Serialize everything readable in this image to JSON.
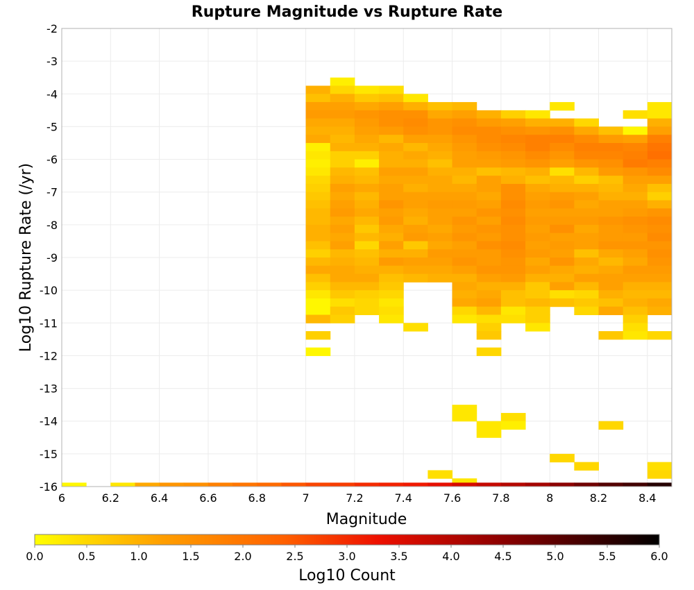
{
  "chart_data": {
    "type": "heatmap",
    "title": "Rupture Magnitude vs Rupture Rate",
    "xlabel": "Magnitude",
    "ylabel": "Log10 Rupture Rate (/yr)",
    "colorbar_label": "Log10 Count",
    "xlim": [
      6,
      8.5
    ],
    "ylim": [
      -16,
      -2
    ],
    "x_ticks": [
      "6",
      "6.2",
      "6.4",
      "6.6",
      "6.8",
      "7",
      "7.2",
      "7.4",
      "7.6",
      "7.8",
      "8",
      "8.2",
      "8.4"
    ],
    "y_ticks": [
      "-2",
      "-3",
      "-4",
      "-5",
      "-6",
      "-7",
      "-8",
      "-9",
      "-10",
      "-11",
      "-12",
      "-13",
      "-14",
      "-15",
      "-16"
    ],
    "colorbar_ticks": [
      "0.0",
      "0.5",
      "1.0",
      "1.5",
      "2.0",
      "2.5",
      "3.0",
      "3.5",
      "4.0",
      "4.5",
      "5.0",
      "5.5",
      "6.0"
    ],
    "color_range": [
      0,
      6
    ],
    "colorscale": [
      "#ffff00",
      "#ffa000",
      "#ff6000",
      "#ee1000",
      "#8b0000",
      "#000000"
    ],
    "bin_width_x": 0.1,
    "bin_width_y": 0.25,
    "grid": true,
    "column_x_starts": [
      7.0,
      7.1,
      7.2,
      7.3,
      7.4,
      7.5,
      7.6,
      7.7,
      7.8,
      7.9,
      8.0,
      8.1,
      8.2,
      8.3,
      8.4
    ],
    "columns": [
      {
        "x": 7.0,
        "top": -3.75,
        "v": [
          1.0,
          0.8,
          1.2,
          1.3,
          1.1,
          1.0,
          1.1,
          0.2,
          0.3,
          0.2,
          0.3,
          0.5,
          0.6,
          0.7,
          0.8,
          0.9,
          0.9,
          1.0,
          1.0,
          0.8,
          0.6,
          0.9,
          1.1,
          0.8,
          0.6,
          0.3,
          0.1,
          0.1,
          0.9,
          null,
          0.6,
          null,
          0.1
        ]
      },
      {
        "x": 7.1,
        "top": -3.5,
        "v": [
          0.2,
          0.5,
          1.0,
          1.2,
          1.3,
          1.1,
          1.0,
          0.9,
          1.0,
          0.6,
          0.6,
          0.9,
          1.0,
          1.2,
          1.1,
          1.2,
          1.3,
          1.1,
          1.2,
          1.1,
          1.2,
          0.9,
          1.0,
          1.1,
          1.1,
          0.9,
          0.7,
          0.4,
          0.7,
          0.6
        ]
      },
      {
        "x": 7.2,
        "top": -3.75,
        "v": [
          0.3,
          0.7,
          1.1,
          1.4,
          1.3,
          1.2,
          1.1,
          1.0,
          0.6,
          0.2,
          0.8,
          0.9,
          1.1,
          0.9,
          1.0,
          1.1,
          0.9,
          0.7,
          0.9,
          0.5,
          0.8,
          0.9,
          1.0,
          1.1,
          0.9,
          0.6,
          0.5,
          0.5
        ]
      },
      {
        "x": 7.3,
        "top": -3.75,
        "v": [
          0.4,
          0.8,
          1.2,
          1.5,
          1.5,
          1.3,
          0.9,
          1.1,
          1.0,
          1.0,
          1.2,
          1.1,
          1.2,
          1.2,
          1.4,
          1.2,
          1.3,
          1.1,
          1.0,
          1.2,
          1.0,
          1.3,
          1.0,
          0.8,
          0.7,
          0.5,
          0.3,
          0.4,
          0.3
        ]
      },
      {
        "x": 7.4,
        "top": -4.0,
        "v": [
          0.3,
          1.0,
          1.5,
          1.6,
          1.5,
          1.2,
          0.9,
          1.1,
          1.0,
          1.2,
          1.1,
          1.0,
          1.2,
          1.2,
          1.1,
          1.0,
          1.2,
          1.3,
          0.7,
          1.0,
          1.2,
          1.1,
          0.9,
          null,
          null,
          null,
          null,
          null,
          0.4
        ]
      },
      {
        "x": 7.5,
        "top": -4.25,
        "v": [
          0.8,
          1.1,
          1.4,
          1.4,
          1.2,
          1.1,
          1.0,
          0.8,
          1.0,
          1.1,
          1.1,
          1.2,
          1.3,
          1.2,
          1.2,
          1.1,
          1.2,
          1.1,
          1.3,
          1.2,
          1.1,
          1.0,
          null,
          null,
          null,
          null,
          null,
          null,
          null,
          null,
          null,
          null,
          null,
          null,
          null,
          null,
          null,
          null,
          null,
          null,
          null,
          null,
          null,
          null,
          null,
          0.4
        ]
      },
      {
        "x": 7.6,
        "top": -4.25,
        "v": [
          0.9,
          1.2,
          1.5,
          1.6,
          1.4,
          1.3,
          1.2,
          1.2,
          1.0,
          0.9,
          1.1,
          1.2,
          1.3,
          1.2,
          1.4,
          1.3,
          1.4,
          1.2,
          1.3,
          1.4,
          1.2,
          1.0,
          1.1,
          1.0,
          1.1,
          0.5,
          0.3,
          null,
          null,
          null,
          null,
          null,
          null,
          null,
          null,
          null,
          null,
          0.3,
          0.3,
          null,
          null,
          null,
          null,
          null,
          null,
          null,
          0.3
        ]
      },
      {
        "x": 7.7,
        "top": -4.5,
        "v": [
          1.0,
          1.3,
          1.6,
          1.6,
          1.5,
          1.3,
          1.2,
          0.8,
          1.2,
          1.2,
          1.1,
          1.2,
          1.4,
          1.2,
          1.4,
          1.3,
          1.5,
          1.3,
          1.3,
          1.4,
          1.2,
          1.0,
          1.1,
          1.2,
          0.9,
          0.4,
          0.6,
          0.7,
          null,
          0.5,
          null,
          null,
          null,
          null,
          null,
          null,
          null,
          null,
          0.3,
          0.3
        ]
      },
      {
        "x": 7.8,
        "top": -4.5,
        "v": [
          0.6,
          1.2,
          1.5,
          1.7,
          1.6,
          1.4,
          1.3,
          0.9,
          1.0,
          1.5,
          1.5,
          1.6,
          1.5,
          1.6,
          1.5,
          1.5,
          1.6,
          1.5,
          1.4,
          1.4,
          1.3,
          1.0,
          0.8,
          0.8,
          0.3,
          0.4,
          null,
          null,
          null,
          null,
          null,
          null,
          null,
          null,
          null,
          null,
          null,
          0.4,
          0.2
        ]
      },
      {
        "x": 7.9,
        "top": -4.5,
        "v": [
          0.3,
          1.0,
          1.4,
          1.8,
          1.8,
          1.6,
          1.4,
          1.0,
          0.8,
          1.1,
          1.2,
          1.3,
          1.2,
          1.3,
          1.2,
          1.3,
          1.2,
          1.3,
          1.1,
          1.2,
          1.0,
          0.7,
          0.7,
          0.9,
          0.6,
          0.6,
          0.3
        ]
      },
      {
        "x": 8.0,
        "top": -4.25,
        "v": [
          0.3,
          null,
          1.0,
          1.5,
          1.8,
          1.6,
          1.4,
          1.2,
          0.4,
          0.9,
          1.0,
          1.3,
          1.4,
          1.2,
          1.3,
          1.5,
          1.2,
          1.3,
          1.2,
          1.4,
          1.1,
          1.0,
          1.2,
          0.4,
          0.8,
          null,
          null,
          null,
          null,
          null,
          null,
          null,
          null,
          null,
          null,
          null,
          null,
          null,
          null,
          null,
          null,
          null,
          null,
          0.5
        ]
      },
      {
        "x": 8.1,
        "top": -4.75,
        "v": [
          0.5,
          1.1,
          1.6,
          1.8,
          1.7,
          1.4,
          0.9,
          0.6,
          1.0,
          1.2,
          1.1,
          1.2,
          1.3,
          1.1,
          1.2,
          1.2,
          0.8,
          1.1,
          1.0,
          1.2,
          0.9,
          0.5,
          0.7,
          0.5,
          null,
          null,
          null,
          null,
          null,
          null,
          null,
          null,
          null,
          null,
          null,
          null,
          null,
          null,
          null,
          null,
          null,
          null,
          0.5
        ]
      },
      {
        "x": 8.2,
        "top": -5.0,
        "v": [
          0.8,
          1.3,
          1.8,
          1.7,
          1.5,
          1.3,
          0.8,
          0.9,
          1.0,
          1.2,
          1.2,
          1.4,
          1.3,
          1.3,
          1.4,
          1.1,
          0.9,
          1.1,
          1.2,
          1.2,
          1.0,
          0.8,
          1.1,
          null,
          null,
          0.7,
          null,
          null,
          null,
          null,
          null,
          null,
          null,
          null,
          null,
          null,
          0.5
        ]
      },
      {
        "x": 8.3,
        "top": -4.5,
        "v": [
          0.4,
          null,
          0.1,
          1.2,
          1.7,
          1.8,
          1.9,
          1.4,
          1.2,
          1.1,
          1.0,
          1.2,
          1.3,
          1.5,
          1.4,
          1.3,
          1.4,
          1.2,
          1.1,
          1.3,
          1.2,
          1.0,
          0.9,
          1.0,
          0.8,
          0.6,
          0.4,
          0.3
        ]
      },
      {
        "x": 8.4,
        "top": -4.25,
        "v": [
          0.3,
          0.3,
          1.0,
          1.2,
          1.8,
          2.0,
          2.1,
          1.8,
          1.6,
          1.2,
          0.8,
          0.6,
          1.0,
          1.4,
          1.6,
          1.5,
          1.6,
          1.4,
          1.5,
          1.4,
          1.3,
          1.2,
          1.0,
          0.9,
          1.1,
          1.0,
          null,
          null,
          0.5,
          null,
          null,
          null,
          null,
          null,
          null,
          null,
          null,
          null,
          null,
          null,
          null,
          null,
          null,
          null,
          0.4,
          0.5
        ]
      }
    ],
    "bottom_row": {
      "y": -16.0,
      "height": 0.12,
      "x_start": 6.0,
      "v": [
        0.1,
        null,
        0.3,
        1.1,
        1.4,
        1.5,
        1.8,
        2.0,
        2.2,
        2.5,
        2.7,
        2.8,
        3.0,
        3.1,
        3.2,
        3.4,
        3.6,
        3.8,
        4.0,
        4.2,
        4.5,
        4.8,
        5.1,
        5.3,
        5.6
      ]
    }
  }
}
